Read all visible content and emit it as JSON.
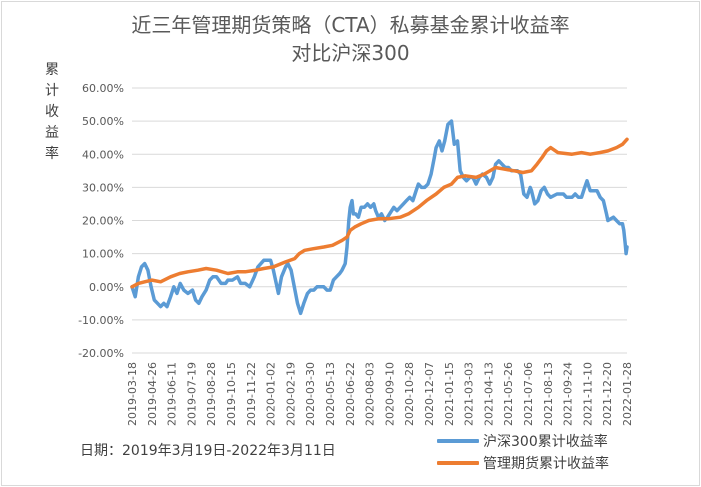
{
  "chart_data": {
    "type": "line",
    "title_line1": "近三年管理期货策略（CTA）私募基金累计收益率",
    "title_line2": "对比沪深300",
    "ylabel": "累计收益率",
    "note": "日期：2019年3月19日-2022年3月11日",
    "ylim": [
      -0.2,
      0.6
    ],
    "ytick_values": [
      -0.2,
      -0.1,
      0.0,
      0.1,
      0.2,
      0.3,
      0.4,
      0.5,
      0.6
    ],
    "ytick_labels": [
      "-20.00%",
      "-10.00%",
      "0.00%",
      "10.00%",
      "20.00%",
      "30.00%",
      "40.00%",
      "50.00%",
      "60.00%"
    ],
    "x_range": [
      "2019-03-18",
      "2022-03-11"
    ],
    "xtick_labels": [
      "2019-03-18",
      "2019-04-26",
      "2019-06-11",
      "2019-07-19",
      "2019-08-28",
      "2019-10-15",
      "2019-11-22",
      "2020-01-02",
      "2020-02-19",
      "2020-03-30",
      "2020-05-13",
      "2020-06-22",
      "2020-08-03",
      "2020-09-10",
      "2020-10-28",
      "2020-12-07",
      "2021-01-15",
      "2021-03-03",
      "2021-04-13",
      "2021-05-26",
      "2021-07-06",
      "2021-08-13",
      "2021-09-24",
      "2021-11-10",
      "2021-12-20",
      "2022-01-28"
    ],
    "grid": true,
    "legend_position": "bottom-right",
    "series": [
      {
        "name": "沪深300累计收益率",
        "color": "#5B9BD5",
        "points": [
          [
            "2019-03-18",
            0.0
          ],
          [
            "2019-03-25",
            -0.03
          ],
          [
            "2019-04-01",
            0.03
          ],
          [
            "2019-04-08",
            0.06
          ],
          [
            "2019-04-15",
            0.07
          ],
          [
            "2019-04-22",
            0.05
          ],
          [
            "2019-04-29",
            0.0
          ],
          [
            "2019-05-06",
            -0.04
          ],
          [
            "2019-05-13",
            -0.05
          ],
          [
            "2019-05-20",
            -0.06
          ],
          [
            "2019-05-27",
            -0.05
          ],
          [
            "2019-06-03",
            -0.06
          ],
          [
            "2019-06-11",
            -0.03
          ],
          [
            "2019-06-18",
            0.0
          ],
          [
            "2019-06-25",
            -0.02
          ],
          [
            "2019-07-02",
            0.01
          ],
          [
            "2019-07-10",
            -0.01
          ],
          [
            "2019-07-19",
            -0.02
          ],
          [
            "2019-07-29",
            -0.01
          ],
          [
            "2019-08-05",
            -0.04
          ],
          [
            "2019-08-12",
            -0.05
          ],
          [
            "2019-08-19",
            -0.03
          ],
          [
            "2019-08-28",
            -0.01
          ],
          [
            "2019-09-05",
            0.02
          ],
          [
            "2019-09-12",
            0.03
          ],
          [
            "2019-09-20",
            0.03
          ],
          [
            "2019-09-30",
            0.01
          ],
          [
            "2019-10-10",
            0.01
          ],
          [
            "2019-10-15",
            0.02
          ],
          [
            "2019-10-25",
            0.02
          ],
          [
            "2019-11-05",
            0.03
          ],
          [
            "2019-11-12",
            0.01
          ],
          [
            "2019-11-22",
            0.01
          ],
          [
            "2019-12-02",
            0.0
          ],
          [
            "2019-12-12",
            0.03
          ],
          [
            "2019-12-20",
            0.06
          ],
          [
            "2020-01-02",
            0.08
          ],
          [
            "2020-01-10",
            0.08
          ],
          [
            "2020-01-17",
            0.08
          ],
          [
            "2020-01-23",
            0.05
          ],
          [
            "2020-02-03",
            -0.02
          ],
          [
            "2020-02-10",
            0.03
          ],
          [
            "2020-02-19",
            0.06
          ],
          [
            "2020-02-24",
            0.07
          ],
          [
            "2020-03-02",
            0.05
          ],
          [
            "2020-03-09",
            0.0
          ],
          [
            "2020-03-16",
            -0.05
          ],
          [
            "2020-03-23",
            -0.08
          ],
          [
            "2020-03-30",
            -0.05
          ],
          [
            "2020-04-07",
            -0.02
          ],
          [
            "2020-04-14",
            -0.01
          ],
          [
            "2020-04-21",
            -0.01
          ],
          [
            "2020-04-28",
            0.0
          ],
          [
            "2020-05-06",
            0.0
          ],
          [
            "2020-05-13",
            0.0
          ],
          [
            "2020-05-20",
            -0.01
          ],
          [
            "2020-05-27",
            -0.01
          ],
          [
            "2020-06-03",
            0.02
          ],
          [
            "2020-06-10",
            0.03
          ],
          [
            "2020-06-17",
            0.04
          ],
          [
            "2020-06-22",
            0.05
          ],
          [
            "2020-06-29",
            0.07
          ],
          [
            "2020-07-03",
            0.12
          ],
          [
            "2020-07-07",
            0.2
          ],
          [
            "2020-07-10",
            0.24
          ],
          [
            "2020-07-14",
            0.26
          ],
          [
            "2020-07-17",
            0.22
          ],
          [
            "2020-07-22",
            0.22
          ],
          [
            "2020-07-28",
            0.21
          ],
          [
            "2020-08-03",
            0.24
          ],
          [
            "2020-08-10",
            0.24
          ],
          [
            "2020-08-17",
            0.25
          ],
          [
            "2020-08-24",
            0.24
          ],
          [
            "2020-08-31",
            0.25
          ],
          [
            "2020-09-04",
            0.23
          ],
          [
            "2020-09-10",
            0.21
          ],
          [
            "2020-09-17",
            0.22
          ],
          [
            "2020-09-24",
            0.2
          ],
          [
            "2020-09-30",
            0.21
          ],
          [
            "2020-10-14",
            0.24
          ],
          [
            "2020-10-21",
            0.23
          ],
          [
            "2020-10-28",
            0.24
          ],
          [
            "2020-11-04",
            0.25
          ],
          [
            "2020-11-11",
            0.26
          ],
          [
            "2020-11-18",
            0.27
          ],
          [
            "2020-11-25",
            0.26
          ],
          [
            "2020-12-02",
            0.29
          ],
          [
            "2020-12-07",
            0.31
          ],
          [
            "2020-12-14",
            0.3
          ],
          [
            "2020-12-21",
            0.3
          ],
          [
            "2020-12-28",
            0.31
          ],
          [
            "2021-01-04",
            0.34
          ],
          [
            "2021-01-11",
            0.39
          ],
          [
            "2021-01-15",
            0.42
          ],
          [
            "2021-01-22",
            0.44
          ],
          [
            "2021-01-28",
            0.41
          ],
          [
            "2021-02-03",
            0.44
          ],
          [
            "2021-02-10",
            0.49
          ],
          [
            "2021-02-18",
            0.5
          ],
          [
            "2021-02-24",
            0.43
          ],
          [
            "2021-03-03",
            0.44
          ],
          [
            "2021-03-09",
            0.35
          ],
          [
            "2021-03-16",
            0.33
          ],
          [
            "2021-03-23",
            0.32
          ],
          [
            "2021-03-30",
            0.33
          ],
          [
            "2021-04-06",
            0.33
          ],
          [
            "2021-04-13",
            0.31
          ],
          [
            "2021-04-20",
            0.33
          ],
          [
            "2021-04-27",
            0.34
          ],
          [
            "2021-05-06",
            0.33
          ],
          [
            "2021-05-13",
            0.31
          ],
          [
            "2021-05-20",
            0.33
          ],
          [
            "2021-05-26",
            0.37
          ],
          [
            "2021-06-02",
            0.38
          ],
          [
            "2021-06-09",
            0.37
          ],
          [
            "2021-06-16",
            0.36
          ],
          [
            "2021-06-23",
            0.36
          ],
          [
            "2021-06-30",
            0.35
          ],
          [
            "2021-07-06",
            0.35
          ],
          [
            "2021-07-13",
            0.35
          ],
          [
            "2021-07-20",
            0.34
          ],
          [
            "2021-07-27",
            0.28
          ],
          [
            "2021-08-03",
            0.27
          ],
          [
            "2021-08-10",
            0.3
          ],
          [
            "2021-08-13",
            0.29
          ],
          [
            "2021-08-20",
            0.25
          ],
          [
            "2021-08-27",
            0.26
          ],
          [
            "2021-09-03",
            0.29
          ],
          [
            "2021-09-10",
            0.3
          ],
          [
            "2021-09-17",
            0.28
          ],
          [
            "2021-09-24",
            0.27
          ],
          [
            "2021-10-08",
            0.28
          ],
          [
            "2021-10-15",
            0.28
          ],
          [
            "2021-10-22",
            0.28
          ],
          [
            "2021-10-29",
            0.27
          ],
          [
            "2021-11-05",
            0.27
          ],
          [
            "2021-11-10",
            0.27
          ],
          [
            "2021-11-17",
            0.28
          ],
          [
            "2021-11-24",
            0.27
          ],
          [
            "2021-12-01",
            0.27
          ],
          [
            "2021-12-08",
            0.3
          ],
          [
            "2021-12-13",
            0.32
          ],
          [
            "2021-12-20",
            0.29
          ],
          [
            "2021-12-27",
            0.29
          ],
          [
            "2022-01-04",
            0.29
          ],
          [
            "2022-01-11",
            0.27
          ],
          [
            "2022-01-18",
            0.26
          ],
          [
            "2022-01-25",
            0.22
          ],
          [
            "2022-01-28",
            0.2
          ],
          [
            "2022-02-09",
            0.21
          ],
          [
            "2022-02-16",
            0.2
          ],
          [
            "2022-02-23",
            0.19
          ],
          [
            "2022-03-01",
            0.19
          ],
          [
            "2022-03-04",
            0.17
          ],
          [
            "2022-03-07",
            0.13
          ],
          [
            "2022-03-09",
            0.1
          ],
          [
            "2022-03-11",
            0.12
          ]
        ]
      },
      {
        "name": "管理期货累计收益率",
        "color": "#ED7D31",
        "points": [
          [
            "2019-03-18",
            0.0
          ],
          [
            "2019-04-01",
            0.01
          ],
          [
            "2019-04-15",
            0.015
          ],
          [
            "2019-05-01",
            0.02
          ],
          [
            "2019-05-20",
            0.015
          ],
          [
            "2019-06-11",
            0.03
          ],
          [
            "2019-07-01",
            0.04
          ],
          [
            "2019-07-19",
            0.045
          ],
          [
            "2019-08-10",
            0.05
          ],
          [
            "2019-08-28",
            0.055
          ],
          [
            "2019-09-20",
            0.05
          ],
          [
            "2019-10-15",
            0.04
          ],
          [
            "2019-11-05",
            0.045
          ],
          [
            "2019-11-22",
            0.045
          ],
          [
            "2019-12-15",
            0.05
          ],
          [
            "2020-01-02",
            0.055
          ],
          [
            "2020-01-23",
            0.06
          ],
          [
            "2020-02-19",
            0.075
          ],
          [
            "2020-03-10",
            0.085
          ],
          [
            "2020-03-20",
            0.1
          ],
          [
            "2020-04-01",
            0.11
          ],
          [
            "2020-04-20",
            0.115
          ],
          [
            "2020-05-13",
            0.12
          ],
          [
            "2020-06-01",
            0.125
          ],
          [
            "2020-06-22",
            0.14
          ],
          [
            "2020-07-03",
            0.15
          ],
          [
            "2020-07-10",
            0.17
          ],
          [
            "2020-07-20",
            0.18
          ],
          [
            "2020-08-03",
            0.19
          ],
          [
            "2020-08-20",
            0.2
          ],
          [
            "2020-09-10",
            0.205
          ],
          [
            "2020-10-01",
            0.205
          ],
          [
            "2020-10-28",
            0.21
          ],
          [
            "2020-11-15",
            0.22
          ],
          [
            "2020-12-07",
            0.24
          ],
          [
            "2020-12-25",
            0.26
          ],
          [
            "2021-01-15",
            0.28
          ],
          [
            "2021-02-01",
            0.3
          ],
          [
            "2021-02-18",
            0.31
          ],
          [
            "2021-03-03",
            0.33
          ],
          [
            "2021-03-20",
            0.335
          ],
          [
            "2021-04-13",
            0.33
          ],
          [
            "2021-05-01",
            0.34
          ],
          [
            "2021-05-26",
            0.36
          ],
          [
            "2021-06-15",
            0.355
          ],
          [
            "2021-07-06",
            0.35
          ],
          [
            "2021-07-25",
            0.345
          ],
          [
            "2021-08-13",
            0.35
          ],
          [
            "2021-08-25",
            0.37
          ],
          [
            "2021-09-05",
            0.39
          ],
          [
            "2021-09-15",
            0.41
          ],
          [
            "2021-09-24",
            0.42
          ],
          [
            "2021-10-10",
            0.405
          ],
          [
            "2021-11-10",
            0.4
          ],
          [
            "2021-12-01",
            0.405
          ],
          [
            "2021-12-20",
            0.4
          ],
          [
            "2022-01-10",
            0.405
          ],
          [
            "2022-01-28",
            0.41
          ],
          [
            "2022-02-16",
            0.42
          ],
          [
            "2022-03-01",
            0.43
          ],
          [
            "2022-03-11",
            0.445
          ]
        ]
      }
    ]
  }
}
